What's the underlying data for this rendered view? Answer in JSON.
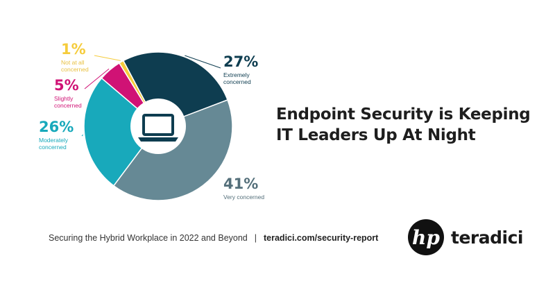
{
  "headline": {
    "line1": "Endpoint Security is Keeping",
    "line2": "IT Leaders Up At Night"
  },
  "footer": {
    "report_title": "Securing the Hybrid Workplace in 2022 and Beyond",
    "separator": "|",
    "url": "teradici.com/security-report"
  },
  "logos": {
    "hp": "hp",
    "teradici": "teradici"
  },
  "center_icon": "laptop-icon",
  "chart_data": {
    "type": "pie",
    "donut": true,
    "categories": [
      "Extremely concerned",
      "Very concerned",
      "Moderately concerned",
      "Slightly concerned",
      "Not at all concerned"
    ],
    "values": [
      27,
      41,
      26,
      5,
      1
    ],
    "labels": [
      "27%",
      "41%",
      "26%",
      "5%",
      "1%"
    ],
    "colors": [
      "#0e3d50",
      "#668995",
      "#18a9bb",
      "#d01275",
      "#f5cc3c"
    ],
    "label_colors": [
      "#0e3d50",
      "#546f7a",
      "#18a9bb",
      "#d01275",
      "#f5cc3c"
    ],
    "text_color_small": [
      "#0e3d50",
      "#546f7a",
      "#18a9bb",
      "#d01275",
      "#e8c040"
    ]
  }
}
